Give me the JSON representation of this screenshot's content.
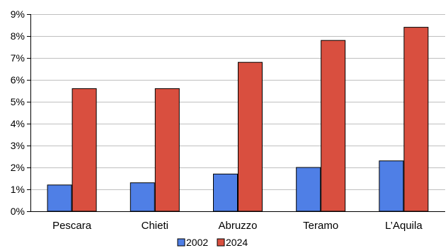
{
  "chart_data": {
    "type": "bar",
    "categories": [
      "Pescara",
      "Chieti",
      "Abruzzo",
      "Teramo",
      "L’Aquila"
    ],
    "series": [
      {
        "name": "2002",
        "values": [
          1.2,
          1.3,
          1.7,
          2.0,
          2.3
        ],
        "color": "#4F7FE6"
      },
      {
        "name": "2024",
        "values": [
          5.6,
          5.6,
          6.8,
          7.8,
          8.4
        ],
        "color": "#D94F3F"
      }
    ],
    "ylim": [
      0,
      9
    ],
    "yticks": [
      0,
      1,
      2,
      3,
      4,
      5,
      6,
      7,
      8,
      9
    ],
    "ytick_labels": [
      "0%",
      "1%",
      "2%",
      "3%",
      "4%",
      "5%",
      "6%",
      "7%",
      "8%",
      "9%"
    ],
    "grid": true,
    "legend_position": "bottom-center",
    "title": "",
    "xlabel": "",
    "ylabel": ""
  }
}
